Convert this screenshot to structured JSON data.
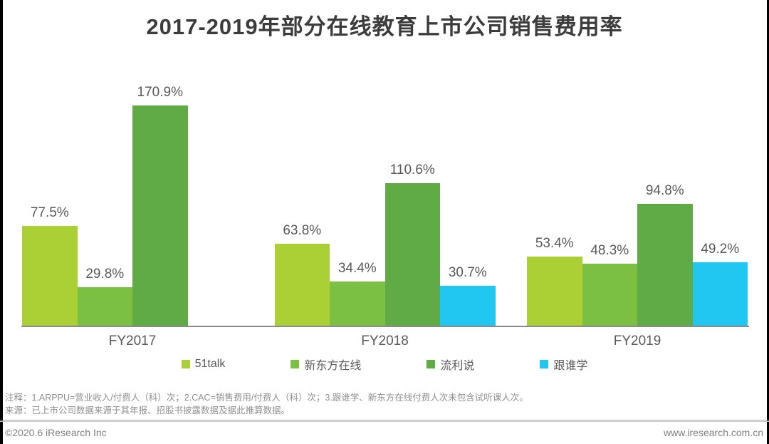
{
  "title": "2017-2019年部分在线教育上市公司销售费用率",
  "chart_data": {
    "type": "bar",
    "categories": [
      "FY2017",
      "FY2018",
      "FY2019"
    ],
    "series": [
      {
        "name": "51talk",
        "color": "#abd036",
        "values": [
          77.5,
          63.8,
          53.4
        ]
      },
      {
        "name": "新东方在线",
        "color": "#7cc043",
        "values": [
          29.8,
          34.4,
          48.3
        ]
      },
      {
        "name": "流利说",
        "color": "#60ab45",
        "values": [
          170.9,
          110.6,
          94.8
        ]
      },
      {
        "name": "跟谁学",
        "color": "#21c7f1",
        "values": [
          null,
          30.7,
          49.2
        ]
      }
    ],
    "value_suffix": "%",
    "ylim": [
      0,
      171
    ],
    "grid": false,
    "bar_labels": true,
    "legend_position": "bottom",
    "axis_color": "#8a8a8a",
    "label_color": "#595959"
  },
  "notes": {
    "line1": "注释：1.ARPPU=营业收入/付费人（科）次；2.CAC=销售费用/付费人（科）次；3.跟谁学、新东方在线付费人次未包含试听课人次。",
    "line2": "来源：已上市公司数据来源于其年报、招股书披露数据及据此推算数据。"
  },
  "footer": {
    "copyright": "©2020.6 iResearch Inc",
    "website": "www.iresearch.com.cn"
  }
}
